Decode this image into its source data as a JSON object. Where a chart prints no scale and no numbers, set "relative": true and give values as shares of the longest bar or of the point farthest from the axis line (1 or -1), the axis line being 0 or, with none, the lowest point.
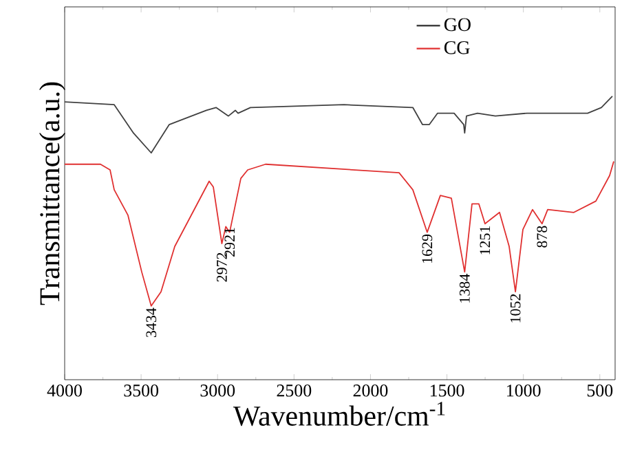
{
  "chart_data": {
    "type": "line",
    "relative": true,
    "xlabel": "Wavenumber/cm$^{-1}$",
    "ylabel": "Transmittance(a.u.)",
    "xlim": [
      4000,
      400
    ],
    "xticks": [
      4000,
      3500,
      3000,
      2500,
      2000,
      1500,
      1000,
      500
    ],
    "legend": "top right",
    "grid": false,
    "marker": "none",
    "line_style": "solid",
    "series": [
      {
        "name": "GO",
        "color": "#404040",
        "x": [
          4000,
          3676,
          3550,
          3434,
          3316,
          3073,
          3010,
          2929,
          2884,
          2866,
          2785,
          2173,
          1723,
          1660,
          1615,
          1561,
          1453,
          1390,
          1384,
          1372,
          1300,
          1183,
          976,
          580,
          490,
          418
        ],
        "values": [
          0.98,
          0.97,
          0.87,
          0.8,
          0.9,
          0.95,
          0.96,
          0.93,
          0.95,
          0.94,
          0.96,
          0.97,
          0.96,
          0.9,
          0.9,
          0.94,
          0.94,
          0.9,
          0.87,
          0.93,
          0.94,
          0.93,
          0.94,
          0.94,
          0.96,
          1.0
        ]
      },
      {
        "name": "CG",
        "color": "#e03030",
        "x": [
          4000,
          3766,
          3703,
          3676,
          3586,
          3496,
          3434,
          3370,
          3280,
          3055,
          3028,
          2972,
          2946,
          2921,
          2848,
          2803,
          2686,
          1813,
          1723,
          1629,
          1543,
          1471,
          1384,
          1336,
          1291,
          1251,
          1156,
          1093,
          1052,
          1003,
          940,
          878,
          841,
          670,
          526,
          436,
          409
        ],
        "values": [
          0.76,
          0.76,
          0.74,
          0.67,
          0.58,
          0.38,
          0.26,
          0.31,
          0.47,
          0.7,
          0.68,
          0.48,
          0.54,
          0.52,
          0.71,
          0.74,
          0.76,
          0.73,
          0.67,
          0.52,
          0.65,
          0.64,
          0.38,
          0.62,
          0.62,
          0.55,
          0.59,
          0.47,
          0.31,
          0.53,
          0.6,
          0.55,
          0.6,
          0.59,
          0.63,
          0.72,
          0.77
        ]
      }
    ],
    "annotations": [
      {
        "text": "3434",
        "x": 3434,
        "y": 0.26
      },
      {
        "text": "2972",
        "x": 2972,
        "y": 0.48
      },
      {
        "text": "2921",
        "x": 2921,
        "y": 0.52
      },
      {
        "text": "1629",
        "x": 1629,
        "y": 0.52
      },
      {
        "text": "1384",
        "x": 1384,
        "y": 0.38
      },
      {
        "text": "1251",
        "x": 1251,
        "y": 0.55
      },
      {
        "text": "1052",
        "x": 1052,
        "y": 0.31
      },
      {
        "text": "878",
        "x": 878,
        "y": 0.55
      }
    ]
  }
}
